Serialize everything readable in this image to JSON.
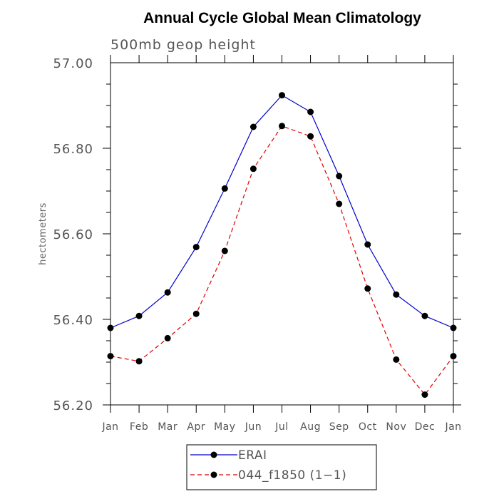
{
  "chart_data": {
    "type": "line",
    "title": "Annual Cycle Global Mean Climatology",
    "subtitle": "500mb geop height",
    "xlabel": "",
    "ylabel": "hectometers",
    "categories": [
      "Jan",
      "Feb",
      "Mar",
      "Apr",
      "May",
      "Jun",
      "Jul",
      "Aug",
      "Sep",
      "Oct",
      "Nov",
      "Dec",
      "Jan"
    ],
    "ylim": [
      56.2,
      57.0
    ],
    "yticks": [
      "56.20",
      "56.40",
      "56.60",
      "56.80",
      "57.00"
    ],
    "grid": false,
    "legend_position": "bottom",
    "series": [
      {
        "name": "ERAI",
        "color": "#0000cc",
        "line_style": "solid",
        "marker": "filled-circle",
        "values": [
          56.38,
          56.408,
          56.463,
          56.569,
          56.706,
          56.85,
          56.924,
          56.885,
          56.735,
          56.575,
          56.458,
          56.408,
          56.38
        ]
      },
      {
        "name": "044_f1850 (1−1)",
        "color": "#dd0000",
        "line_style": "dashed",
        "marker": "filled-circle",
        "values": [
          56.314,
          56.302,
          56.356,
          56.413,
          56.56,
          56.752,
          56.852,
          56.828,
          56.67,
          56.472,
          56.306,
          56.224,
          56.314
        ]
      }
    ]
  }
}
